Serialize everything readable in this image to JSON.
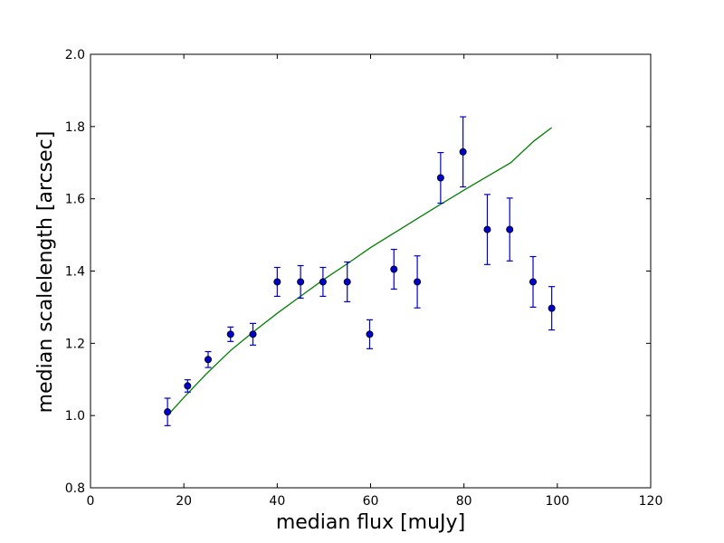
{
  "chart_data": {
    "type": "scatter",
    "title": "",
    "xlabel": "median flux [muJy]",
    "ylabel": "median scalelength [arcsec]",
    "xlim": [
      0,
      120
    ],
    "ylim": [
      0.8,
      2.0
    ],
    "xticks": [
      0,
      20,
      40,
      60,
      80,
      100,
      120
    ],
    "yticks": [
      0.8,
      1.0,
      1.2,
      1.4,
      1.6,
      1.8,
      2.0
    ],
    "xtick_labels": [
      "0",
      "20",
      "40",
      "60",
      "80",
      "100",
      "120"
    ],
    "ytick_labels": [
      "0.8",
      "1.0",
      "1.2",
      "1.4",
      "1.6",
      "1.8",
      "2.0"
    ],
    "grid": false,
    "points": {
      "color": "#0000cc",
      "x": [
        16.5,
        20.8,
        25.2,
        30.0,
        34.8,
        40.0,
        45.0,
        49.8,
        55.0,
        59.8,
        65.0,
        70.0,
        75.0,
        79.8,
        85.0,
        89.8,
        94.8,
        98.8
      ],
      "y": [
        1.01,
        1.082,
        1.155,
        1.225,
        1.225,
        1.37,
        1.37,
        1.37,
        1.37,
        1.225,
        1.405,
        1.37,
        1.658,
        1.73,
        1.515,
        1.515,
        1.37,
        1.297
      ],
      "yerr_low": [
        0.038,
        0.017,
        0.022,
        0.02,
        0.03,
        0.04,
        0.045,
        0.04,
        0.055,
        0.04,
        0.055,
        0.072,
        0.07,
        0.097,
        0.097,
        0.087,
        0.07,
        0.06
      ],
      "yerr_high": [
        0.038,
        0.017,
        0.022,
        0.02,
        0.03,
        0.04,
        0.045,
        0.04,
        0.055,
        0.04,
        0.055,
        0.072,
        0.07,
        0.097,
        0.097,
        0.087,
        0.07,
        0.06
      ]
    },
    "fit_line": {
      "color": "#008000",
      "x": [
        16.5,
        20,
        25,
        30,
        35,
        40,
        45,
        50,
        55,
        60,
        65,
        70,
        75,
        80,
        85,
        90,
        95,
        98.8
      ],
      "y": [
        1.0,
        1.05,
        1.118,
        1.18,
        1.233,
        1.283,
        1.33,
        1.377,
        1.42,
        1.465,
        1.505,
        1.545,
        1.585,
        1.624,
        1.662,
        1.7,
        1.76,
        1.797
      ]
    }
  }
}
